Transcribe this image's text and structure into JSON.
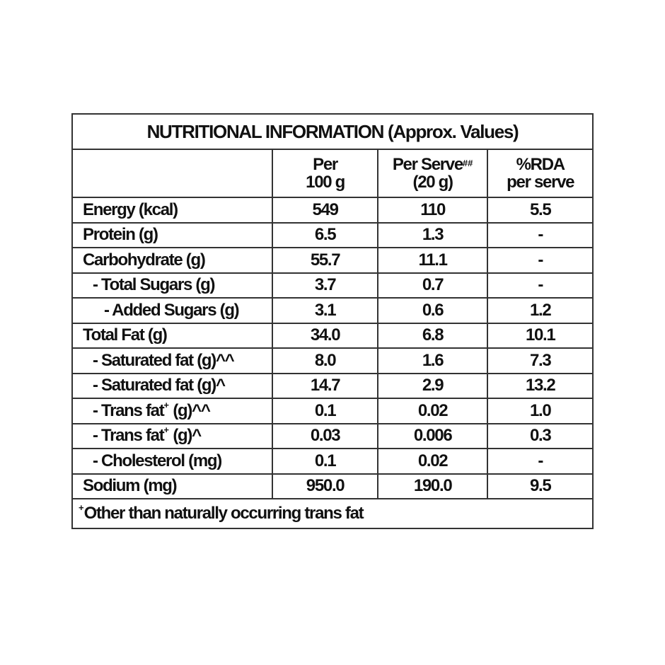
{
  "title": "NUTRITIONAL INFORMATION (Approx. Values)",
  "headers": {
    "col1": "",
    "col2_line1": "Per",
    "col2_line2": "100 g",
    "col3_line1": "Per Serve",
    "col3_sup": "##",
    "col3_line2": "(20 g)",
    "col4_line1": "%RDA",
    "col4_line2": "per serve"
  },
  "rows": [
    {
      "label": "Energy (kcal)",
      "sup": "",
      "suffix": "",
      "indent": 0,
      "per100": "549",
      "perServe": "110",
      "rda": "5.5"
    },
    {
      "label": "Protein (g)",
      "sup": "",
      "suffix": "",
      "indent": 0,
      "per100": "6.5",
      "perServe": "1.3",
      "rda": "-"
    },
    {
      "label": "Carbohydrate (g)",
      "sup": "",
      "suffix": "",
      "indent": 0,
      "per100": "55.7",
      "perServe": "11.1",
      "rda": "-"
    },
    {
      "label": "- Total Sugars (g)",
      "sup": "",
      "suffix": "",
      "indent": 1,
      "per100": "3.7",
      "perServe": "0.7",
      "rda": "-"
    },
    {
      "label": "- Added Sugars (g)",
      "sup": "",
      "suffix": "",
      "indent": 2,
      "per100": "3.1",
      "perServe": "0.6",
      "rda": "1.2"
    },
    {
      "label": "Total Fat (g)",
      "sup": "",
      "suffix": "",
      "indent": 0,
      "per100": "34.0",
      "perServe": "6.8",
      "rda": "10.1"
    },
    {
      "label": "- Saturated fat (g)",
      "sup": "",
      "suffix": "^^",
      "indent": 1,
      "per100": "8.0",
      "perServe": "1.6",
      "rda": "7.3"
    },
    {
      "label": "- Saturated fat (g)",
      "sup": "",
      "suffix": "^",
      "indent": 1,
      "per100": "14.7",
      "perServe": "2.9",
      "rda": "13.2"
    },
    {
      "label": "- Trans fat",
      "sup": "+",
      "suffix": " (g)^^",
      "indent": 1,
      "per100": "0.1",
      "perServe": "0.02",
      "rda": "1.0"
    },
    {
      "label": "- Trans fat",
      "sup": "+",
      "suffix": " (g)^",
      "indent": 1,
      "per100": "0.03",
      "perServe": "0.006",
      "rda": "0.3"
    },
    {
      "label": "- Cholesterol (mg)",
      "sup": "",
      "suffix": "",
      "indent": 1,
      "per100": "0.1",
      "perServe": "0.02",
      "rda": "-"
    },
    {
      "label": "Sodium (mg)",
      "sup": "",
      "suffix": "",
      "indent": 0,
      "per100": "950.0",
      "perServe": "190.0",
      "rda": "9.5"
    }
  ],
  "footnote": {
    "sup": "+",
    "text": "Other than naturally occurring trans fat"
  }
}
